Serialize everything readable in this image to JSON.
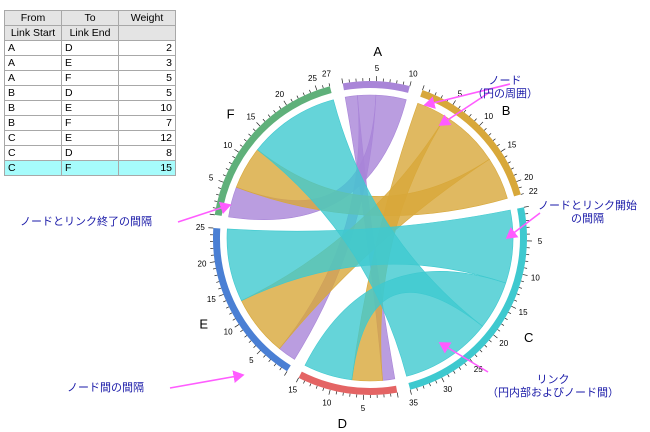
{
  "table": {
    "headers": [
      {
        "label": "From",
        "sub": "Link Start"
      },
      {
        "label": "To",
        "sub": "Link End"
      },
      {
        "label": "Weight",
        "sub": ""
      }
    ],
    "rows": [
      {
        "from": "A",
        "to": "D",
        "weight": "2"
      },
      {
        "from": "A",
        "to": "E",
        "weight": "3"
      },
      {
        "from": "A",
        "to": "F",
        "weight": "5"
      },
      {
        "from": "B",
        "to": "D",
        "weight": "5"
      },
      {
        "from": "B",
        "to": "E",
        "weight": "10"
      },
      {
        "from": "B",
        "to": "F",
        "weight": "7"
      },
      {
        "from": "C",
        "to": "E",
        "weight": "12"
      },
      {
        "from": "C",
        "to": "D",
        "weight": "8"
      },
      {
        "from": "C",
        "to": "F",
        "weight": "15"
      }
    ],
    "selected_row": 8,
    "selected_color": "#a6fbfb"
  },
  "diagram": {
    "nodes": [
      {
        "id": "A",
        "total": 10,
        "color": "#a985d8",
        "ticks": [
          "5",
          "10"
        ]
      },
      {
        "id": "B",
        "total": 22,
        "color": "#d8a83a",
        "ticks": [
          "5",
          "10",
          "15",
          "20",
          "22"
        ]
      },
      {
        "id": "C",
        "total": 35,
        "color": "#3ec9cf",
        "ticks": [
          "5",
          "10",
          "15",
          "20",
          "25",
          "30",
          "35"
        ]
      },
      {
        "id": "D",
        "total": 15,
        "color": "#e46464",
        "ticks": [
          "5",
          "10",
          "15"
        ]
      },
      {
        "id": "E",
        "total": 25,
        "color": "#4a7fd4",
        "ticks": [
          "5",
          "10",
          "15",
          "20",
          "25"
        ]
      },
      {
        "id": "F",
        "total": 27,
        "color": "#5fb07a",
        "ticks": [
          "5",
          "10",
          "15",
          "20",
          "25",
          "27"
        ]
      }
    ],
    "link_color_by_source": true,
    "link_opacity": 0.8
  },
  "annotations": {
    "node": [
      "ノード",
      "（円の周囲）"
    ],
    "node_link_start_gap": [
      "ノードとリンク開始",
      "の間隔"
    ],
    "node_link_end_gap": [
      "ノードとリンク終了の間隔"
    ],
    "node_gap": [
      "ノード間の間隔"
    ],
    "link": [
      "リンク",
      "（円内部およびノード間）"
    ],
    "arrow_color": "#ff5cff",
    "text_color": "#1a1aa8"
  }
}
